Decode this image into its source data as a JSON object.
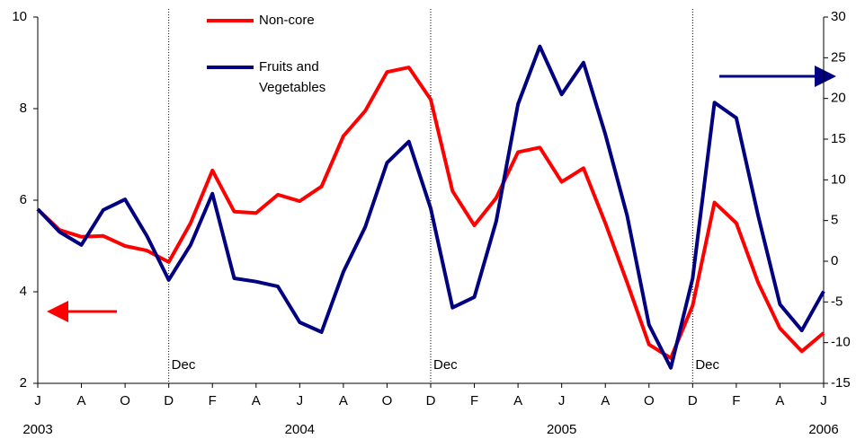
{
  "chart_data": {
    "type": "line",
    "categories": [
      "J",
      null,
      "A",
      null,
      "O",
      null,
      "D",
      null,
      "F",
      null,
      "A",
      null,
      "J",
      null,
      "A",
      null,
      "O",
      null,
      "D",
      null,
      "F",
      null,
      "A",
      null,
      "J",
      null,
      "A",
      null,
      "O",
      null,
      "D",
      null,
      "F",
      null,
      "A",
      null,
      "J"
    ],
    "years": [
      "2003",
      null,
      null,
      null,
      null,
      null,
      null,
      null,
      null,
      null,
      null,
      null,
      "2004",
      null,
      null,
      null,
      null,
      null,
      null,
      null,
      null,
      null,
      null,
      null,
      "2005",
      null,
      null,
      null,
      null,
      null,
      null,
      null,
      null,
      null,
      null,
      null,
      "2006"
    ],
    "series": [
      {
        "name": "Non-core",
        "color": "#ff0000",
        "axis": "y",
        "values": [
          5.8,
          5.35,
          5.2,
          5.22,
          5.0,
          4.9,
          4.65,
          5.5,
          6.65,
          5.75,
          5.72,
          6.12,
          5.98,
          6.3,
          7.4,
          7.95,
          8.8,
          8.9,
          8.2,
          6.2,
          5.45,
          6.05,
          7.05,
          7.15,
          6.4,
          6.7,
          5.5,
          4.2,
          2.85,
          2.55,
          3.7,
          5.95,
          5.5,
          4.2,
          3.2,
          2.7,
          3.1
        ]
      },
      {
        "name": "Fruits and Vegetables",
        "color": "#000080",
        "axis": "y2",
        "values": [
          6.4,
          3.6,
          2.0,
          6.3,
          7.6,
          3.1,
          -2.3,
          2.0,
          8.3,
          -2.1,
          -2.5,
          -3.1,
          -7.5,
          -8.7,
          -1.3,
          4.2,
          12.1,
          14.7,
          6.5,
          -5.7,
          -4.4,
          4.9,
          19.3,
          26.4,
          20.5,
          24.4,
          15.6,
          5.6,
          -7.8,
          -13.1,
          -2.1,
          19.5,
          17.6,
          5.6,
          -5.3,
          -8.5,
          -3.7
        ]
      }
    ],
    "ylim": [
      2,
      10
    ],
    "yticks": [
      2,
      4,
      6,
      8,
      10
    ],
    "y2lim": [
      -15,
      30
    ],
    "y2ticks": [
      -15,
      -10,
      -5,
      0,
      5,
      10,
      15,
      20,
      25,
      30
    ],
    "divider_label": "Dec",
    "divider_category": "D"
  }
}
